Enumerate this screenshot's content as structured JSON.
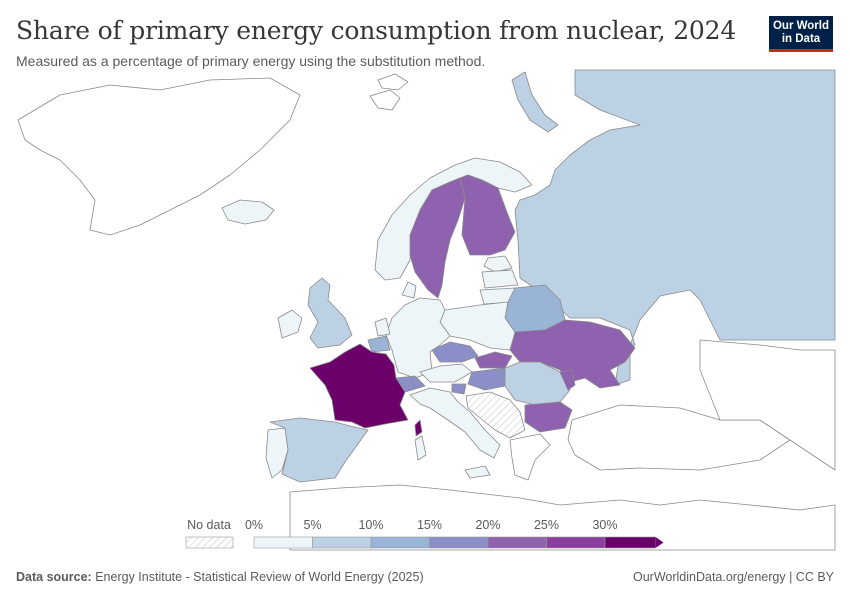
{
  "header": {
    "title": "Share of primary energy consumption from nuclear, 2024",
    "subtitle": "Measured as a percentage of primary energy using the substitution method.",
    "logo_line1": "Our World",
    "logo_line2": "in Data"
  },
  "legend": {
    "no_data_label": "No data",
    "ticks": [
      "0%",
      "5%",
      "10%",
      "15%",
      "20%",
      "25%",
      "30%"
    ],
    "colors": [
      "#edf5f8",
      "#bdd1e4",
      "#9ab4d7",
      "#8a8fc7",
      "#8e62ae",
      "#8b3e9d",
      "#6b006b"
    ]
  },
  "map_data": {
    "France": 36.5,
    "Sweden": 23.2,
    "Finland": 22.6,
    "Ukraine": 22.0,
    "Slovakia": 21.5,
    "Bulgaria": 20.8,
    "Hungary": 17.5,
    "Czechia": 16.2,
    "Slovenia": 17.0,
    "Switzerland": 16.5,
    "Belarus": 13.5,
    "Belgium": 12.0,
    "Spain": 8.5,
    "Russia": 7.0,
    "United Kingdom": 7.5,
    "Romania": 8.0,
    "Germany": 0.0,
    "Italy": 0.0,
    "Poland": 0.0,
    "Norway": 0.0
  },
  "footer": {
    "source_label": "Data source:",
    "source_text": "Energy Institute - Statistical Review of World Energy (2025)",
    "right_text": "OurWorldinData.org/energy | CC BY"
  },
  "colors": {
    "title": "#373737",
    "logo_bg": "#002147",
    "logo_accent": "#ce261e",
    "border": "#7a7a7a"
  }
}
